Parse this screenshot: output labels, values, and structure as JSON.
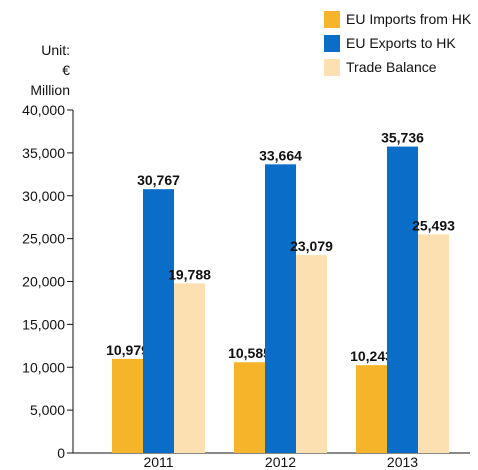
{
  "unit": {
    "line1": "Unit:",
    "line2": "€ Million"
  },
  "chart_data": {
    "type": "bar",
    "categories": [
      "2011",
      "2012",
      "2013"
    ],
    "series": [
      {
        "name": "EU Imports from HK",
        "color": "#f6b42b",
        "values": [
          10979,
          10585,
          10243
        ],
        "labels": [
          "10,979",
          "10,585",
          "10,243"
        ]
      },
      {
        "name": "EU Exports to HK",
        "color": "#0a6ec9",
        "values": [
          30767,
          33664,
          35736
        ],
        "labels": [
          "30,767",
          "33,664",
          "35,736"
        ]
      },
      {
        "name": "Trade Balance",
        "color": "#fde0b1",
        "values": [
          19788,
          23079,
          25493
        ],
        "labels": [
          "19,788",
          "23,079",
          "25,493"
        ]
      }
    ],
    "yticks": [
      0,
      5000,
      10000,
      15000,
      20000,
      25000,
      30000,
      35000,
      40000
    ],
    "ytick_labels": [
      "0",
      "5,000",
      "10,000",
      "15,000",
      "20,000",
      "25,000",
      "30,000",
      "35,000",
      "40,000"
    ],
    "ylim": [
      0,
      40000
    ],
    "legend_position": "top-right",
    "grid": false
  }
}
